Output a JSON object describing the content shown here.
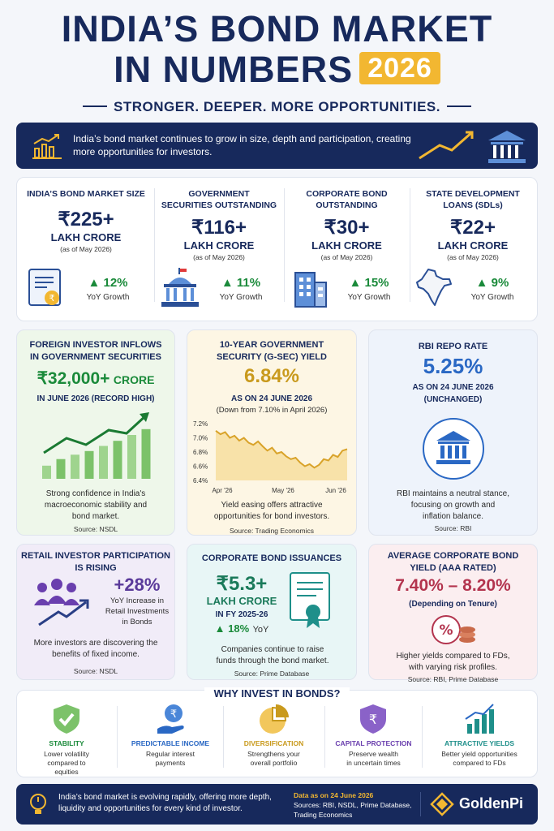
{
  "header": {
    "title_line1": "INDIA’S BOND MARKET",
    "title_line2": "IN NUMBERS",
    "year": "2026",
    "tagline": "STRONGER. DEEPER. MORE OPPORTUNITIES."
  },
  "banner": {
    "text": "India’s bond market continues to grow in size, depth and participation, creating more opportunities for investors."
  },
  "stats": [
    {
      "label_1": "INDIA’S BOND MARKET SIZE",
      "label_2": "",
      "value": "₹225+",
      "unit": "LAKH CRORE",
      "asof": "(as of May 2026)",
      "growth": "12%",
      "growth_label": "YoY Growth",
      "icon": "certificate-icon"
    },
    {
      "label_1": "GOVERNMENT",
      "label_2": "SECURITIES OUTSTANDING",
      "value": "₹116+",
      "unit": "LAKH CRORE",
      "asof": "(as of May 2026)",
      "growth": "11%",
      "growth_label": "YoY Growth",
      "icon": "government-building-icon"
    },
    {
      "label_1": "CORPORATE BOND",
      "label_2": "OUTSTANDING",
      "value": "₹30+",
      "unit": "LAKH CRORE",
      "asof": "(as of May 2026)",
      "growth": "15%",
      "growth_label": "YoY Growth",
      "icon": "office-building-icon"
    },
    {
      "label_1": "STATE DEVELOPMENT",
      "label_2": "LOANS (SDLs)",
      "value": "₹22+",
      "unit": "LAKH CRORE",
      "asof": "(as of May 2026)",
      "growth": "9%",
      "growth_label": "YoY Growth",
      "icon": "india-map-icon"
    }
  ],
  "fpi": {
    "title_1": "FOREIGN INVESTOR INFLOWS",
    "title_2": "IN GOVERNMENT SECURITIES",
    "value": "₹32,000+",
    "value_unit": "CRORE",
    "sub": "IN JUNE 2026 (RECORD HIGH)",
    "desc_1": "Strong confidence in India's",
    "desc_2": "macroeconomic stability and",
    "desc_3": "bond market.",
    "source": "Source: NSDL",
    "bar_levels": [
      0.18,
      0.27,
      0.33,
      0.38,
      0.45,
      0.52,
      0.6,
      0.68
    ],
    "accent": "#1a8a3a"
  },
  "gsec": {
    "title_1": "10-YEAR GOVERNMENT",
    "title_2": "SECURITY (G-SEC) YIELD",
    "value": "6.84%",
    "asof": "AS ON 24 JUNE 2026",
    "note": "(Down from 7.10% in April 2026)",
    "desc_1": "Yield easing offers attractive",
    "desc_2": "opportunities for bond investors.",
    "source": "Source: Trading Economics",
    "accent": "#c99a1d"
  },
  "chart_data": {
    "type": "area",
    "title": "",
    "xlabel": "",
    "ylabel": "",
    "ylim": [
      6.4,
      7.2
    ],
    "yticks": [
      "7.2%",
      "7.0%",
      "6.8%",
      "6.6%",
      "6.4%"
    ],
    "xticks": [
      "Apr '26",
      "May '26",
      "Jun '26"
    ],
    "x": [
      0,
      3,
      6,
      9,
      12,
      15,
      18,
      21,
      24,
      27,
      30,
      33,
      36,
      39,
      42,
      45,
      48,
      51,
      54,
      57,
      60,
      63,
      66,
      69,
      72,
      75,
      78,
      81,
      84
    ],
    "y": [
      7.1,
      7.05,
      7.08,
      7.0,
      7.03,
      6.96,
      7.0,
      6.93,
      6.9,
      6.95,
      6.88,
      6.82,
      6.86,
      6.78,
      6.8,
      6.74,
      6.7,
      6.72,
      6.65,
      6.6,
      6.63,
      6.58,
      6.62,
      6.7,
      6.68,
      6.76,
      6.73,
      6.82,
      6.84
    ],
    "grid": false
  },
  "repo": {
    "title": "RBI REPO RATE",
    "value": "5.25%",
    "asof": "AS ON 24 JUNE 2026",
    "status": "(UNCHANGED)",
    "desc_1": "RBI maintains a neutral stance,",
    "desc_2": "focusing on growth and",
    "desc_3": "inflation balance.",
    "source": "Source: RBI",
    "accent": "#2a68c4"
  },
  "retail": {
    "title_1": "RETAIL INVESTOR PARTICIPATION",
    "title_2": "IS RISING",
    "value": "+28%",
    "line_1": "YoY Increase in",
    "line_2": "Retail Investments",
    "line_3": "in Bonds",
    "desc_1": "More investors are discovering the",
    "desc_2": "benefits of fixed income.",
    "source": "Source: NSDL",
    "accent": "#5a3a9a"
  },
  "issuance": {
    "title": "CORPORATE BOND ISSUANCES",
    "value": "₹5.3+",
    "unit": "LAKH CRORE",
    "period": "IN FY 2025-26",
    "growth": "18%",
    "growth_label": "YoY",
    "desc_1": "Companies continue to raise",
    "desc_2": "funds through the bond market.",
    "source": "Source: Prime Database"
  },
  "yield": {
    "title_1": "AVERAGE CORPORATE BOND",
    "title_2": "YIELD (AAA RATED)",
    "value": "7.40% – 8.20%",
    "note": "(Depending on Tenure)",
    "desc_1": "Higher yields compared to FDs,",
    "desc_2": "with varying risk profiles.",
    "source": "Source: RBI, Prime Database",
    "accent": "#b3344e"
  },
  "why": {
    "title": "WHY INVEST IN BONDS?",
    "items": [
      {
        "name": "STABILITY",
        "desc_1": "Lower volatility",
        "desc_2": "compared to",
        "desc_3": "equities",
        "color": "#1a8a3a",
        "icon": "shield-check-icon"
      },
      {
        "name": "PREDICTABLE INCOME",
        "desc_1": "Regular interest",
        "desc_2": "payments",
        "desc_3": "",
        "color": "#2a68c4",
        "icon": "hand-coin-icon"
      },
      {
        "name": "DIVERSIFICATION",
        "desc_1": "Strengthens your",
        "desc_2": "overall portfolio",
        "desc_3": "",
        "color": "#c99a1d",
        "icon": "pie-chart-icon"
      },
      {
        "name": "CAPITAL PROTECTION",
        "desc_1": "Preserve wealth",
        "desc_2": "in uncertain times",
        "desc_3": "",
        "color": "#6a3fae",
        "icon": "rupee-shield-icon"
      },
      {
        "name": "ATTRACTIVE YIELDS",
        "desc_1": "Better yield opportunities",
        "desc_2": "compared to FDs",
        "desc_3": "",
        "color": "#1e8f8a",
        "icon": "growth-chart-icon"
      }
    ]
  },
  "footer": {
    "text": "India’s bond market is evolving rapidly, offering more depth, liquidity and opportunities for every kind of investor.",
    "data_as": "Data as on 24 June 2026",
    "sources_1": "Sources: RBI, NSDL, Prime Database,",
    "sources_2": "Trading Economics",
    "brand": "GoldenPi"
  }
}
